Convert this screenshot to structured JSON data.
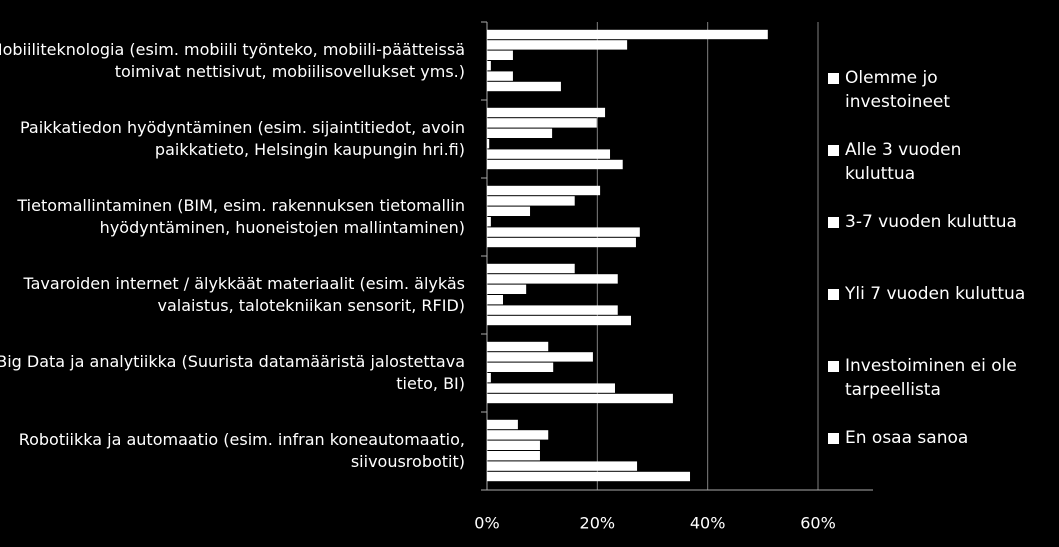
{
  "chart_data": {
    "type": "hbar",
    "categories": [
      "Mobiiliteknologia (esim. mobiili työnteko, mobiili-päätteissä toimivat nettisivut, mobiilisovellukset yms.)",
      "Paikkatiedon hyödyntäminen (esim. sijaintitiedot, avoin paikkatieto, Helsingin kaupungin hri.fi)",
      "Tietomallintaminen (BIM, esim. rakennuksen tietomallin hyödyntäminen, huoneistojen mallintaminen)",
      "Tavaroiden internet / älykkäät materiaalit (esim. älykäs valaistus, talotekniikan sensorit, RFID)",
      "Big Data ja analytiikka (Suurista datamääristä jalostettava tieto, BI)",
      "Robotiikka ja automaatio (esim. infran koneautomaatio, siivousrobotit)"
    ],
    "series": [
      {
        "name": "Olemme jo investoineet",
        "color": "#ffffff",
        "values": [
          50.9,
          21.4,
          20.5,
          15.9,
          11.1,
          5.6
        ]
      },
      {
        "name": "Alle 3 vuoden kuluttua",
        "color": "#ffffff",
        "values": [
          25.4,
          19.9,
          15.9,
          23.7,
          19.2,
          11.1
        ]
      },
      {
        "name": "3-7 vuoden kuluttua",
        "color": "#ffffff",
        "values": [
          4.7,
          11.8,
          7.8,
          7.1,
          12.0,
          9.6
        ]
      },
      {
        "name": "Yli 7 vuoden kuluttua",
        "color": "#ffffff",
        "values": [
          0.7,
          0.4,
          0.7,
          2.9,
          0.7,
          9.6
        ]
      },
      {
        "name": "Investoiminen ei ole tarpeellista",
        "color": "#ffffff",
        "values": [
          4.7,
          22.3,
          27.7,
          23.7,
          23.2,
          27.2
        ]
      },
      {
        "name": "En osaa sanoa",
        "color": "#ffffff",
        "values": [
          13.4,
          24.6,
          27.0,
          26.1,
          33.7,
          36.8
        ]
      }
    ],
    "xlim": [
      0,
      60
    ],
    "xticks": [
      {
        "value": 0,
        "label": "0%"
      },
      {
        "value": 20,
        "label": "20%"
      },
      {
        "value": 40,
        "label": "40%"
      },
      {
        "value": 60,
        "label": "60%"
      }
    ],
    "grid": true
  }
}
